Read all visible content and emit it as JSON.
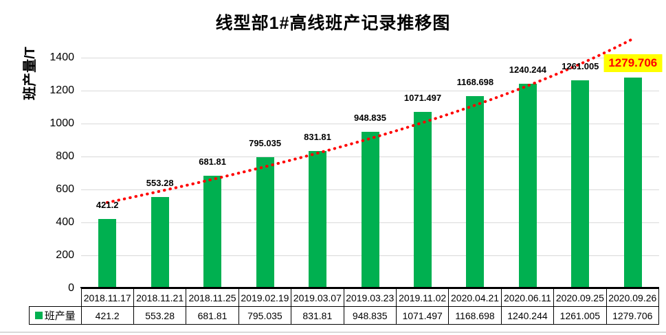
{
  "title": "线型部1#高线班产记录推移图",
  "y_axis": {
    "label": "班产量/T",
    "ticks": [
      0,
      200,
      400,
      600,
      800,
      1000,
      1200,
      1400
    ],
    "max": 1500
  },
  "legend": {
    "label": "班产量"
  },
  "colors": {
    "bar": "#00B050",
    "trendline": "#FF0000",
    "gridline": "#D9D9D9",
    "axis": "#000000",
    "highlight_bg": "#FFFF00",
    "highlight_text": "#FF0000",
    "bottom_divider": "#D9D9D9"
  },
  "table": {
    "legend_label": "班产量",
    "dates": [
      "2018.11.17",
      "2018.11.21",
      "2018.11.25",
      "2019.02.19",
      "2019.03.07",
      "2019.03.23",
      "2019.11.02",
      "2020.04.21",
      "2020.06.11",
      "2020.09.25",
      "2020.09.26"
    ],
    "values": [
      "421.2",
      "553.28",
      "681.81",
      "795.035",
      "831.81",
      "948.835",
      "1071.497",
      "1168.698",
      "1240.244",
      "1261.005",
      "1279.706"
    ]
  },
  "chart_data": {
    "type": "bar",
    "title": "线型部1#高线班产记录推移图",
    "categories": [
      "2018.11.17",
      "2018.11.21",
      "2018.11.25",
      "2019.02.19",
      "2019.03.07",
      "2019.03.23",
      "2019.11.02",
      "2020.04.21",
      "2020.06.11",
      "2020.09.25",
      "2020.09.26"
    ],
    "series": [
      {
        "name": "班产量",
        "values": [
          421.2,
          553.28,
          681.81,
          795.035,
          831.81,
          948.835,
          1071.497,
          1168.698,
          1240.244,
          1261.005,
          1279.706
        ]
      }
    ],
    "xlabel": "",
    "ylabel": "班产量/T",
    "ylim": [
      0,
      1500
    ],
    "yticks": [
      0,
      200,
      400,
      600,
      800,
      1000,
      1200,
      1400
    ],
    "grid": true,
    "legend_position": "bottom-left-of-data-table",
    "data_labels": true,
    "trendline": {
      "type": "exponential",
      "style": "dotted",
      "color": "#FF0000"
    },
    "highlighted_point": {
      "category": "2020.09.26",
      "value": 1279.706,
      "style": "yellow-background-red-bold-text"
    }
  }
}
